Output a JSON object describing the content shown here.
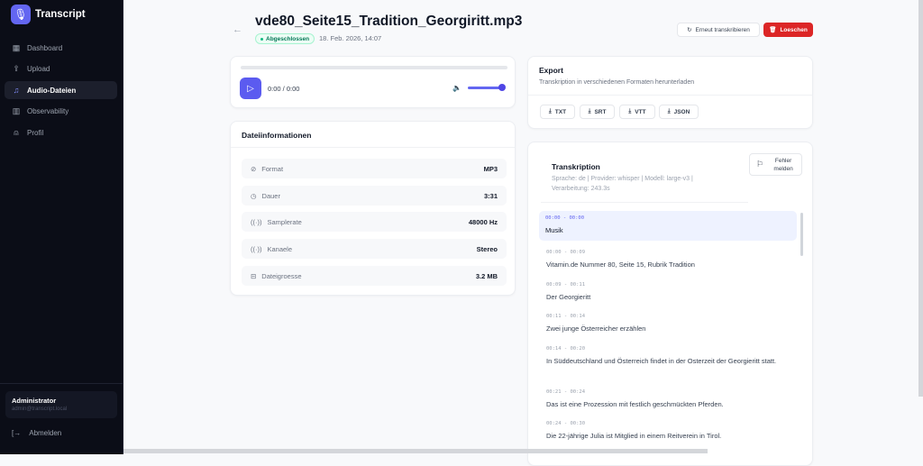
{
  "app": {
    "name": "Transcript",
    "logo_icon": "microphone-icon"
  },
  "sidebar": {
    "items": [
      {
        "label": "Dashboard",
        "icon": "grid-icon"
      },
      {
        "label": "Upload",
        "icon": "upload-icon"
      },
      {
        "label": "Audio-Dateien",
        "icon": "headphones-icon",
        "active": true
      },
      {
        "label": "Observability",
        "icon": "bar-chart-icon"
      },
      {
        "label": "Profil",
        "icon": "user-icon"
      }
    ],
    "user": {
      "name": "Administrator",
      "email": "admin@transcript.local"
    },
    "logout": "Abmelden"
  },
  "header": {
    "title": "vde80_Seite15_Tradition_Georgiritt.mp3",
    "status": "Abgeschlossen",
    "date": "18. Feb. 2026, 14:07",
    "retranscribe": "Erneut transkribieren",
    "delete": "Loeschen"
  },
  "player": {
    "time": "0:00 / 0:00",
    "progress": 0,
    "volume": 1.0
  },
  "fileinfo": {
    "title": "Dateiinformationen",
    "rows": [
      {
        "label": "Format",
        "value": "MP3"
      },
      {
        "label": "Dauer",
        "value": "3:31"
      },
      {
        "label": "Samplerate",
        "value": "48000 Hz"
      },
      {
        "label": "Kanaele",
        "value": "Stereo"
      },
      {
        "label": "Dateigroesse",
        "value": "3.2 MB"
      }
    ]
  },
  "export": {
    "title": "Export",
    "subtitle": "Transkription in verschiedenen Formaten herunterladen",
    "formats": [
      "TXT",
      "SRT",
      "VTT",
      "JSON"
    ]
  },
  "transcription": {
    "title": "Transkription",
    "meta": "Sprache: de | Provider: whisper | Modell: large-v3 | Verarbeitung: 243.3s",
    "report": "Fehler melden",
    "segments": [
      {
        "time": "00:00 - 00:00",
        "text": "Musik"
      },
      {
        "time": "00:00 - 00:09",
        "text": "Vitamin.de Nummer 80, Seite 15, Rubrik Tradition"
      },
      {
        "time": "00:09 - 00:11",
        "text": "Der Georgieritt"
      },
      {
        "time": "00:11 - 00:14",
        "text": "Zwei junge Österreicher erzählen"
      },
      {
        "time": "00:14 - 00:20",
        "text": "In Süddeutschland und Österreich findet in der Osterzeit der Georgieritt statt."
      },
      {
        "time": "00:21 - 00:24",
        "text": "Das ist eine Prozession mit festlich geschmückten Pferden."
      },
      {
        "time": "00:24 - 00:30",
        "text": "Die 22-jährige Julia ist Mitglied in einem Reitverein in Tirol."
      }
    ]
  }
}
